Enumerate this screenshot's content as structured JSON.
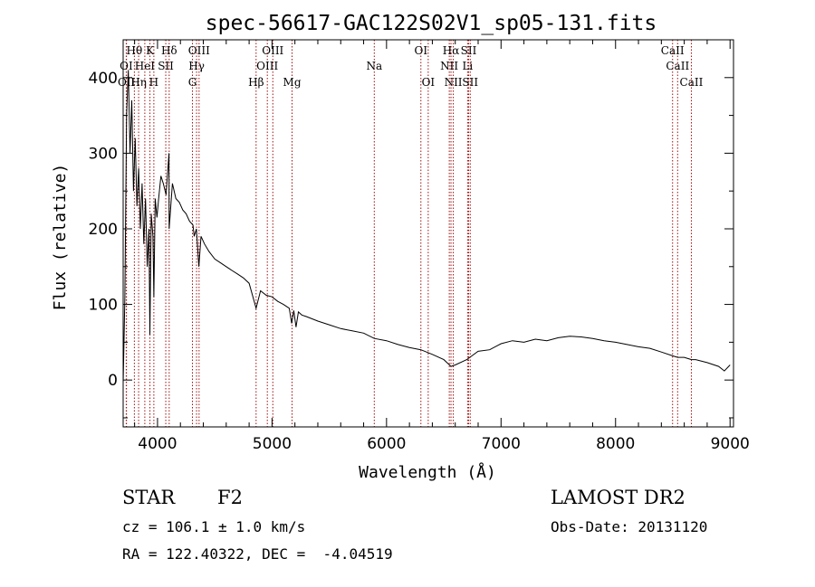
{
  "chart_data": {
    "type": "line",
    "title": "spec-56617-GAC122S02V1_sp05-131.fits",
    "xlabel": "Wavelength (Å)",
    "ylabel": "Flux (relative)",
    "xlim": [
      3700,
      9030
    ],
    "ylim": [
      -62,
      450
    ],
    "xticks": [
      4000,
      5000,
      6000,
      7000,
      8000,
      9000
    ],
    "yticks": [
      0,
      100,
      200,
      300,
      400
    ],
    "grid": false,
    "series": [
      {
        "x": [
          3700,
          3715,
          3730,
          3745,
          3760,
          3775,
          3790,
          3805,
          3820,
          3835,
          3850,
          3865,
          3880,
          3895,
          3910,
          3925,
          3933,
          3945,
          3960,
          3968,
          3980,
          3995,
          4010,
          4030,
          4050,
          4075,
          4100,
          4102,
          4130,
          4160,
          4190,
          4220,
          4250,
          4280,
          4310,
          4320,
          4340,
          4361,
          4380,
          4410,
          4450,
          4500,
          4550,
          4600,
          4650,
          4700,
          4750,
          4800,
          4861,
          4900,
          4950,
          5000,
          5050,
          5100,
          5150,
          5172,
          5190,
          5210,
          5230,
          5260,
          5300,
          5400,
          5500,
          5600,
          5700,
          5800,
          5893,
          6000,
          6100,
          6200,
          6300,
          6400,
          6500,
          6563,
          6600,
          6700,
          6800,
          6900,
          7000,
          7100,
          7200,
          7300,
          7400,
          7500,
          7600,
          7700,
          7800,
          7900,
          8000,
          8100,
          8200,
          8300,
          8400,
          8498,
          8542,
          8600,
          8662,
          8700,
          8800,
          8900,
          8950,
          9000
        ],
        "y": [
          -5,
          110,
          350,
          410,
          300,
          370,
          250,
          320,
          230,
          280,
          200,
          260,
          180,
          240,
          150,
          200,
          60,
          220,
          190,
          110,
          240,
          215,
          240,
          270,
          260,
          245,
          300,
          200,
          260,
          240,
          235,
          225,
          220,
          210,
          205,
          190,
          200,
          150,
          190,
          180,
          170,
          160,
          155,
          150,
          145,
          140,
          135,
          128,
          95,
          118,
          112,
          110,
          104,
          100,
          95,
          75,
          92,
          70,
          90,
          86,
          84,
          78,
          73,
          68,
          65,
          62,
          55,
          52,
          47,
          43,
          40,
          34,
          27,
          18,
          20,
          27,
          38,
          40,
          48,
          52,
          50,
          54,
          52,
          56,
          58,
          57,
          55,
          52,
          50,
          47,
          44,
          42,
          37,
          32,
          30,
          30,
          27,
          27,
          23,
          18,
          12,
          20
        ]
      }
    ],
    "spectral_lines": [
      {
        "label": "Hθ",
        "wavelength": 3798,
        "row": 0
      },
      {
        "label": "K",
        "wavelength": 3934,
        "row": 0
      },
      {
        "label": "Hδ",
        "wavelength": 4102,
        "row": 0
      },
      {
        "label": "OIII",
        "wavelength": 4363,
        "row": 0
      },
      {
        "label": "OIII",
        "wavelength": 5007,
        "row": 0
      },
      {
        "label": "OI",
        "wavelength": 6300,
        "row": 0
      },
      {
        "label": "Hα",
        "wavelength": 6563,
        "row": 0
      },
      {
        "label": "SII",
        "wavelength": 6717,
        "row": 0
      },
      {
        "label": "CaII",
        "wavelength": 8498,
        "row": 0
      },
      {
        "label": "OI",
        "wavelength": 3727,
        "row": 1
      },
      {
        "label": "HeI",
        "wavelength": 3889,
        "row": 1
      },
      {
        "label": "SII",
        "wavelength": 4072,
        "row": 1
      },
      {
        "label": "Hγ",
        "wavelength": 4341,
        "row": 1
      },
      {
        "label": "OIII",
        "wavelength": 4959,
        "row": 1
      },
      {
        "label": "Na",
        "wavelength": 5893,
        "row": 1
      },
      {
        "label": "NII",
        "wavelength": 6548,
        "row": 1
      },
      {
        "label": "Li",
        "wavelength": 6708,
        "row": 1
      },
      {
        "label": "CaII",
        "wavelength": 8542,
        "row": 1
      },
      {
        "label": "OII",
        "wavelength": 3729,
        "row": 2
      },
      {
        "label": "Hη",
        "wavelength": 3835,
        "row": 2
      },
      {
        "label": "H",
        "wavelength": 3968,
        "row": 2
      },
      {
        "label": "G",
        "wavelength": 4305,
        "row": 2
      },
      {
        "label": "Hβ",
        "wavelength": 4861,
        "row": 2
      },
      {
        "label": "Mg",
        "wavelength": 5175,
        "row": 2
      },
      {
        "label": "OI",
        "wavelength": 6364,
        "row": 2
      },
      {
        "label": "NII",
        "wavelength": 6583,
        "row": 2
      },
      {
        "label": "SII",
        "wavelength": 6731,
        "row": 2
      },
      {
        "label": "CaII",
        "wavelength": 8662,
        "row": 2
      }
    ]
  },
  "info": {
    "object_class": "STAR",
    "subclass": "F2",
    "survey": "LAMOST DR2",
    "redshift": "cz = 106.1 ± 1.0 km/s",
    "obs_date": "Obs-Date: 20131120",
    "coords": "RA = 122.40322, DEC =  -4.04519"
  }
}
